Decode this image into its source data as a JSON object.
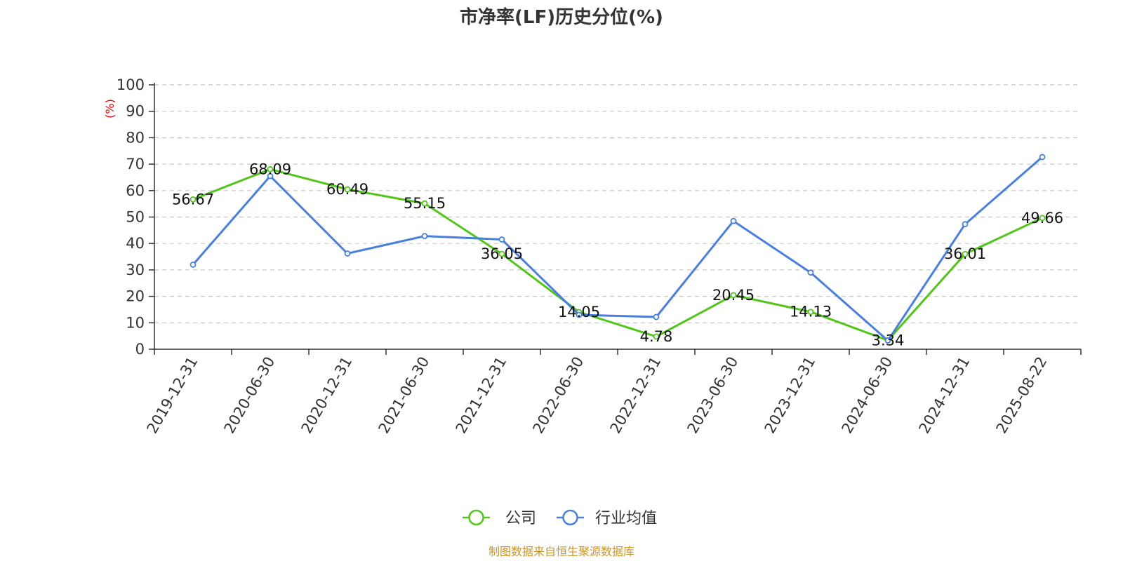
{
  "chart_data": {
    "type": "line",
    "title": "市净率(LF)历史分位(%)",
    "ylabel": "(%)",
    "ylim": [
      0,
      100
    ],
    "yticks": [
      0,
      10,
      20,
      30,
      40,
      50,
      60,
      70,
      80,
      90,
      100
    ],
    "categories": [
      "2019-12-31",
      "2020-06-30",
      "2020-12-31",
      "2021-06-30",
      "2021-12-31",
      "2022-06-30",
      "2022-12-31",
      "2023-06-30",
      "2023-12-31",
      "2024-06-30",
      "2024-12-31",
      "2025-08-22"
    ],
    "series": [
      {
        "name": "公司",
        "color": "#52c41a",
        "show_labels": true,
        "values": [
          56.67,
          68.09,
          60.49,
          55.15,
          36.05,
          14.05,
          4.78,
          20.45,
          14.13,
          3.34,
          36.01,
          49.66
        ]
      },
      {
        "name": "行业均值",
        "color": "#4a7fdb",
        "show_labels": false,
        "values": [
          32.0,
          65.5,
          36.2,
          42.8,
          41.5,
          13.0,
          12.2,
          48.5,
          29.0,
          3.3,
          47.3,
          72.7
        ]
      }
    ],
    "grid": true,
    "legend_position": "bottom-center",
    "ylabel_color": "#e60000"
  },
  "source_text": "制图数据来自恒生聚源数据库",
  "source_color": "#c8962a"
}
